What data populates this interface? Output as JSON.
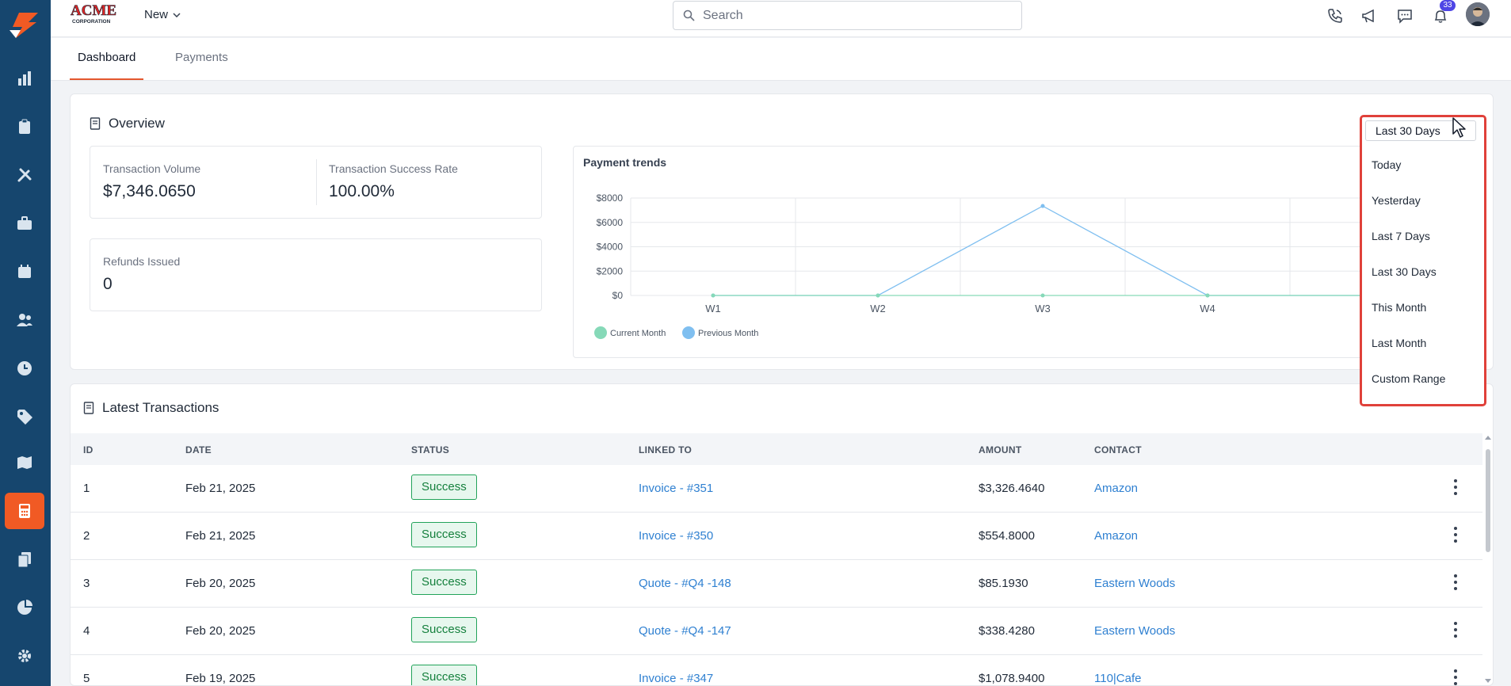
{
  "topbar": {
    "brand": "ACME",
    "brand_sub": "CORPORATION",
    "new_label": "New",
    "search_placeholder": "Search",
    "notification_count": "33",
    "icons": [
      "phone-icon",
      "megaphone-icon",
      "chat-icon",
      "bell-icon"
    ]
  },
  "sidebar": {
    "items": [
      "bar-chart-icon",
      "clipboard-icon",
      "tools-icon",
      "briefcase-icon",
      "calendar-icon",
      "users-icon",
      "clock-icon",
      "tag-icon",
      "map-icon",
      "calculator-icon",
      "documents-icon",
      "pie-chart-icon",
      "gear-icon"
    ],
    "active": "calculator-icon",
    "active_color": "#f15a24",
    "bg_color": "#16466e"
  },
  "tabs": [
    {
      "label": "Dashboard",
      "active": true
    },
    {
      "label": "Payments",
      "active": false
    }
  ],
  "overview": {
    "title": "Overview",
    "transaction_volume_label": "Transaction Volume",
    "transaction_volume_value": "$7,346.0650",
    "success_rate_label": "Transaction Success Rate",
    "success_rate_value": "100.00%",
    "refunds_label": "Refunds Issued",
    "refunds_value": "0"
  },
  "chart_data": {
    "type": "line",
    "title": "Payment trends",
    "categories": [
      "W1",
      "W2",
      "W3",
      "W4"
    ],
    "series": [
      {
        "name": "Current Month",
        "color": "#86d9b8",
        "values": [
          0,
          0,
          0,
          0
        ]
      },
      {
        "name": "Previous Month",
        "color": "#7fbff0",
        "values": [
          0,
          0,
          7346,
          0
        ]
      }
    ],
    "y_ticks": [
      "$8000",
      "$6000",
      "$4000",
      "$2000",
      "$0"
    ],
    "ylim": [
      0,
      8000
    ],
    "grid": true,
    "legend": "bottom-left"
  },
  "range_dropdown": {
    "selected": "Last 30 Days",
    "options": [
      "Today",
      "Yesterday",
      "Last 7 Days",
      "Last 30 Days",
      "This Month",
      "Last Month",
      "Custom Range"
    ]
  },
  "transactions": {
    "title": "Latest Transactions",
    "columns": [
      "ID",
      "DATE",
      "STATUS",
      "LINKED TO",
      "AMOUNT",
      "CONTACT"
    ],
    "rows": [
      {
        "id": "1",
        "date": "Feb 21, 2025",
        "status": "Success",
        "linked_to": "Invoice - #351",
        "amount": "$3,326.4640",
        "contact": "Amazon"
      },
      {
        "id": "2",
        "date": "Feb 21, 2025",
        "status": "Success",
        "linked_to": "Invoice - #350",
        "amount": "$554.8000",
        "contact": "Amazon"
      },
      {
        "id": "3",
        "date": "Feb 20, 2025",
        "status": "Success",
        "linked_to": "Quote - #Q4 -148",
        "amount": "$85.1930",
        "contact": "Eastern Woods"
      },
      {
        "id": "4",
        "date": "Feb 20, 2025",
        "status": "Success",
        "linked_to": "Quote - #Q4 -147",
        "amount": "$338.4280",
        "contact": "Eastern Woods"
      },
      {
        "id": "5",
        "date": "Feb 19, 2025",
        "status": "Success",
        "linked_to": "Invoice - #347",
        "amount": "$1,078.9400",
        "contact": "110|Cafe"
      }
    ]
  }
}
